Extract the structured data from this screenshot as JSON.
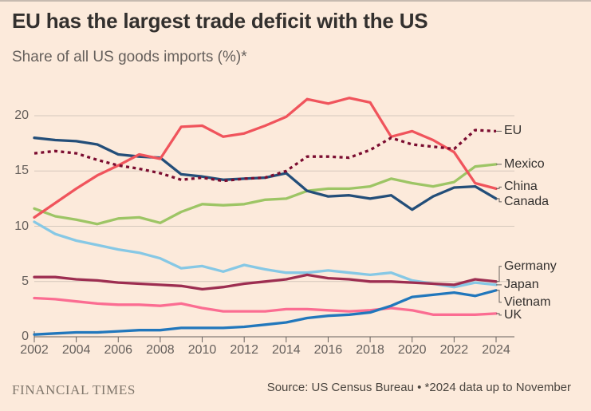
{
  "header": {
    "title": "EU has the largest trade deficit with the US",
    "subtitle": "Share of all US goods imports (%)*"
  },
  "footer": {
    "brand": "FINANCIAL TIMES",
    "source": "Source: US Census Bureau • *2024 data up to November"
  },
  "palette": {
    "background": "#fceadb",
    "grid": "#d5c8bc",
    "axis": "#66605c",
    "leader": "#66605c",
    "text_primary": "#33302e",
    "text_secondary": "#66605c"
  },
  "chart_data": {
    "type": "line",
    "title": "EU has the largest trade deficit with the US",
    "subtitle": "Share of all US goods imports (%)*",
    "xlabel": "",
    "ylabel": "Share of all US goods imports (%)",
    "grid": true,
    "legend_position": "right-end-labels",
    "ylim": [
      0,
      22
    ],
    "yticks": [
      0,
      5,
      10,
      15,
      20
    ],
    "x_tick_labels": [
      "2002",
      "2004",
      "2006",
      "2008",
      "2010",
      "2012",
      "2014",
      "2016",
      "2018",
      "2020",
      "2022",
      "2024"
    ],
    "x": [
      2002,
      2003,
      2004,
      2005,
      2006,
      2007,
      2008,
      2009,
      2010,
      2011,
      2012,
      2013,
      2014,
      2015,
      2016,
      2017,
      2018,
      2019,
      2020,
      2021,
      2022,
      2023,
      2024
    ],
    "series": [
      {
        "name": "Japan",
        "color": "#86c8e5",
        "dash": false,
        "label_dy": 0,
        "values": [
          10.4,
          9.3,
          8.7,
          8.3,
          7.9,
          7.6,
          7.1,
          6.2,
          6.4,
          5.9,
          6.5,
          6.1,
          5.8,
          5.8,
          6.0,
          5.8,
          5.6,
          5.8,
          5.1,
          4.8,
          4.5,
          4.9,
          4.7
        ]
      },
      {
        "name": "UK",
        "color": "#fb6d92",
        "dash": false,
        "label_dy": 2,
        "values": [
          3.5,
          3.4,
          3.2,
          3.0,
          2.9,
          2.9,
          2.8,
          3.0,
          2.6,
          2.3,
          2.3,
          2.3,
          2.5,
          2.5,
          2.4,
          2.3,
          2.4,
          2.6,
          2.4,
          2.0,
          2.0,
          2.0,
          2.1
        ]
      },
      {
        "name": "Vietnam",
        "color": "#2177bc",
        "dash": false,
        "label_dy": 15,
        "values": [
          0.2,
          0.3,
          0.4,
          0.4,
          0.5,
          0.6,
          0.6,
          0.8,
          0.8,
          0.8,
          0.9,
          1.1,
          1.3,
          1.7,
          1.9,
          2.0,
          2.2,
          2.8,
          3.6,
          3.8,
          4.0,
          3.7,
          4.2
        ]
      },
      {
        "name": "Germany",
        "color": "#9d2e51",
        "dash": false,
        "label_dy": -19,
        "values": [
          5.4,
          5.4,
          5.2,
          5.1,
          4.9,
          4.8,
          4.7,
          4.6,
          4.3,
          4.5,
          4.8,
          5.0,
          5.2,
          5.6,
          5.3,
          5.2,
          5.0,
          5.0,
          4.9,
          4.8,
          4.7,
          5.2,
          5.0
        ]
      },
      {
        "name": "Mexico",
        "color": "#9dc565",
        "dash": false,
        "label_dy": 0,
        "values": [
          11.6,
          10.9,
          10.6,
          10.2,
          10.7,
          10.8,
          10.3,
          11.3,
          12.0,
          11.9,
          12.0,
          12.4,
          12.5,
          13.2,
          13.4,
          13.4,
          13.6,
          14.3,
          13.9,
          13.6,
          14.0,
          15.4,
          15.6
        ]
      },
      {
        "name": "Canada",
        "color": "#234e79",
        "dash": false,
        "label_dy": 4,
        "values": [
          18.0,
          17.8,
          17.7,
          17.4,
          16.5,
          16.3,
          16.2,
          14.7,
          14.5,
          14.2,
          14.3,
          14.4,
          14.8,
          13.2,
          12.7,
          12.8,
          12.5,
          12.8,
          11.5,
          12.7,
          13.5,
          13.6,
          12.5
        ]
      },
      {
        "name": "China",
        "color": "#f0545c",
        "dash": false,
        "label_dy": -2,
        "values": [
          10.8,
          12.1,
          13.4,
          14.6,
          15.5,
          16.5,
          16.1,
          19.0,
          19.1,
          18.1,
          18.4,
          19.1,
          19.9,
          21.5,
          21.1,
          21.6,
          21.2,
          18.1,
          18.6,
          17.8,
          16.7,
          13.9,
          13.4
        ]
      },
      {
        "name": "EU",
        "color": "#7b0c30",
        "dash": true,
        "label_dy": 0,
        "values": [
          16.6,
          16.8,
          16.6,
          16.0,
          15.5,
          15.2,
          14.8,
          14.2,
          14.4,
          14.1,
          14.3,
          14.4,
          15.0,
          16.3,
          16.3,
          16.2,
          16.9,
          18.0,
          17.4,
          17.2,
          17.0,
          18.7,
          18.6
        ]
      }
    ]
  }
}
